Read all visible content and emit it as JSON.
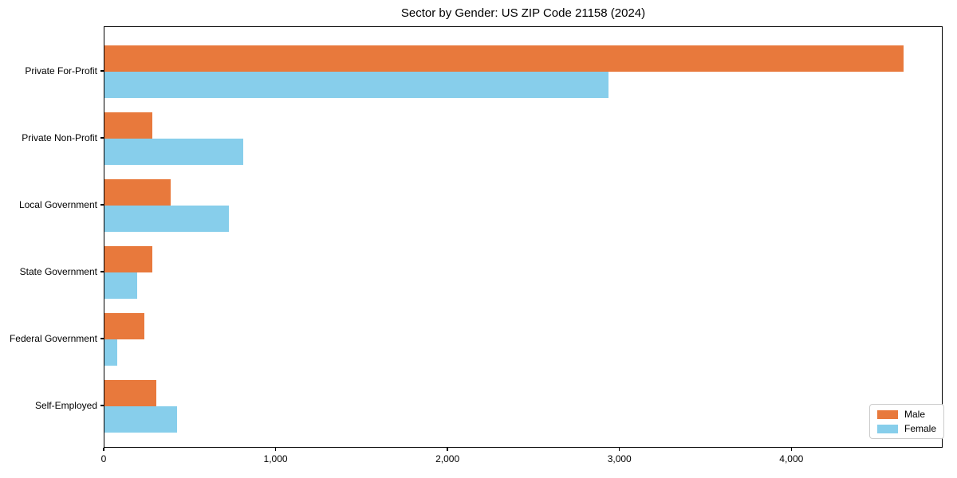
{
  "chart_data": {
    "type": "bar",
    "orientation": "horizontal",
    "title": "Sector by Gender: US ZIP Code 21158 (2024)",
    "categories": [
      "Private For-Profit",
      "Private Non-Profit",
      "Local Government",
      "State Government",
      "Federal Government",
      "Self-Employed"
    ],
    "series": [
      {
        "name": "Male",
        "color": "#e8793c",
        "values": [
          4650,
          280,
          385,
          280,
          230,
          300
        ]
      },
      {
        "name": "Female",
        "color": "#87ceeb",
        "values": [
          2930,
          805,
          725,
          190,
          75,
          420
        ]
      }
    ],
    "xlabel": "",
    "ylabel": "",
    "xlim": [
      0,
      4880
    ],
    "xticks": [
      0,
      1000,
      2000,
      3000,
      4000
    ],
    "xtick_labels": [
      "0",
      "1,000",
      "2,000",
      "3,000",
      "4,000"
    ],
    "grid": false,
    "legend_position": "lower right"
  }
}
